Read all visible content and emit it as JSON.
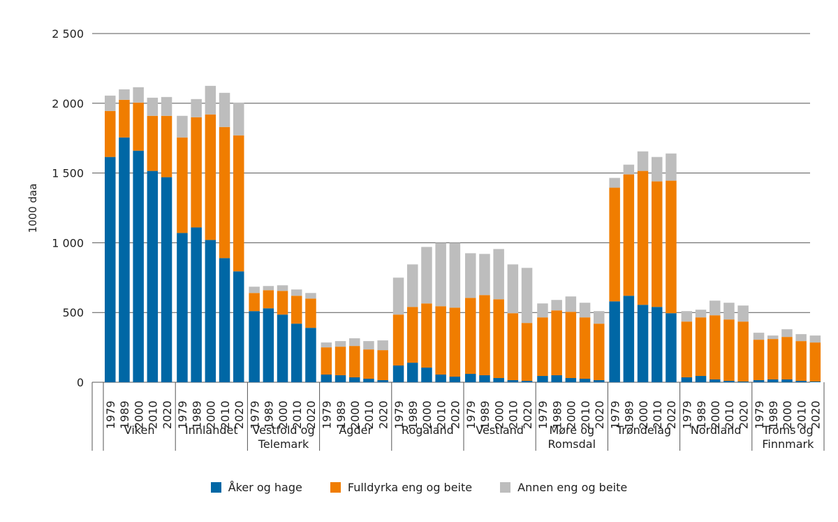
{
  "chart_data": {
    "type": "bar",
    "stacked": true,
    "ylabel": "1000 daa",
    "ylim": [
      0,
      2500
    ],
    "yticks": [
      "0",
      "500",
      "1 000",
      "1 500",
      "2 000",
      "2 500"
    ],
    "ytick_values": [
      0,
      500,
      1000,
      1500,
      2000,
      2500
    ],
    "grid": true,
    "legend_position": "bottom",
    "years": [
      "1979",
      "1989",
      "2000",
      "2010",
      "2020"
    ],
    "groups": [
      {
        "name": [
          "Viken"
        ]
      },
      {
        "name": [
          "Innlandet"
        ]
      },
      {
        "name": [
          "Vestfold og",
          "Telemark"
        ]
      },
      {
        "name": [
          "Agder"
        ]
      },
      {
        "name": [
          "Rogaland"
        ]
      },
      {
        "name": [
          "Vestland"
        ]
      },
      {
        "name": [
          "Møre og",
          "Romsdal"
        ]
      },
      {
        "name": [
          "Trøndelag"
        ]
      },
      {
        "name": [
          "Nordland"
        ]
      },
      {
        "name": [
          "Troms og",
          "Finnmark"
        ]
      }
    ],
    "series": [
      {
        "name": "Åker og hage",
        "color": "#0067a5",
        "values": [
          [
            1615,
            1755,
            1660,
            1515,
            1470
          ],
          [
            1070,
            1110,
            1020,
            890,
            795
          ],
          [
            510,
            530,
            485,
            420,
            390
          ],
          [
            55,
            50,
            35,
            25,
            15
          ],
          [
            120,
            140,
            105,
            55,
            40
          ],
          [
            60,
            50,
            30,
            15,
            10
          ],
          [
            45,
            50,
            30,
            25,
            15
          ],
          [
            580,
            620,
            555,
            540,
            495
          ],
          [
            35,
            45,
            20,
            10,
            5
          ],
          [
            15,
            20,
            20,
            10,
            5
          ]
        ]
      },
      {
        "name": "Fulldyrka eng og beite",
        "color": "#f07d00",
        "values": [
          [
            330,
            270,
            345,
            395,
            440
          ],
          [
            685,
            790,
            900,
            940,
            975
          ],
          [
            130,
            130,
            170,
            200,
            210
          ],
          [
            195,
            205,
            225,
            210,
            215
          ],
          [
            365,
            400,
            460,
            490,
            495
          ],
          [
            545,
            575,
            565,
            480,
            415
          ],
          [
            420,
            465,
            475,
            440,
            405
          ],
          [
            815,
            870,
            960,
            900,
            950
          ],
          [
            400,
            420,
            460,
            440,
            430
          ],
          [
            290,
            290,
            305,
            285,
            280
          ]
        ]
      },
      {
        "name": "Annen eng og beite",
        "color": "#bdbdbd",
        "values": [
          [
            110,
            75,
            110,
            130,
            135
          ],
          [
            155,
            130,
            205,
            245,
            235
          ],
          [
            45,
            30,
            40,
            45,
            40
          ],
          [
            35,
            40,
            55,
            60,
            70
          ],
          [
            265,
            305,
            405,
            455,
            465
          ],
          [
            320,
            295,
            360,
            350,
            395
          ],
          [
            100,
            75,
            110,
            105,
            90
          ],
          [
            70,
            70,
            140,
            175,
            195
          ],
          [
            75,
            55,
            105,
            120,
            115
          ],
          [
            50,
            25,
            55,
            50,
            50
          ]
        ]
      }
    ]
  }
}
